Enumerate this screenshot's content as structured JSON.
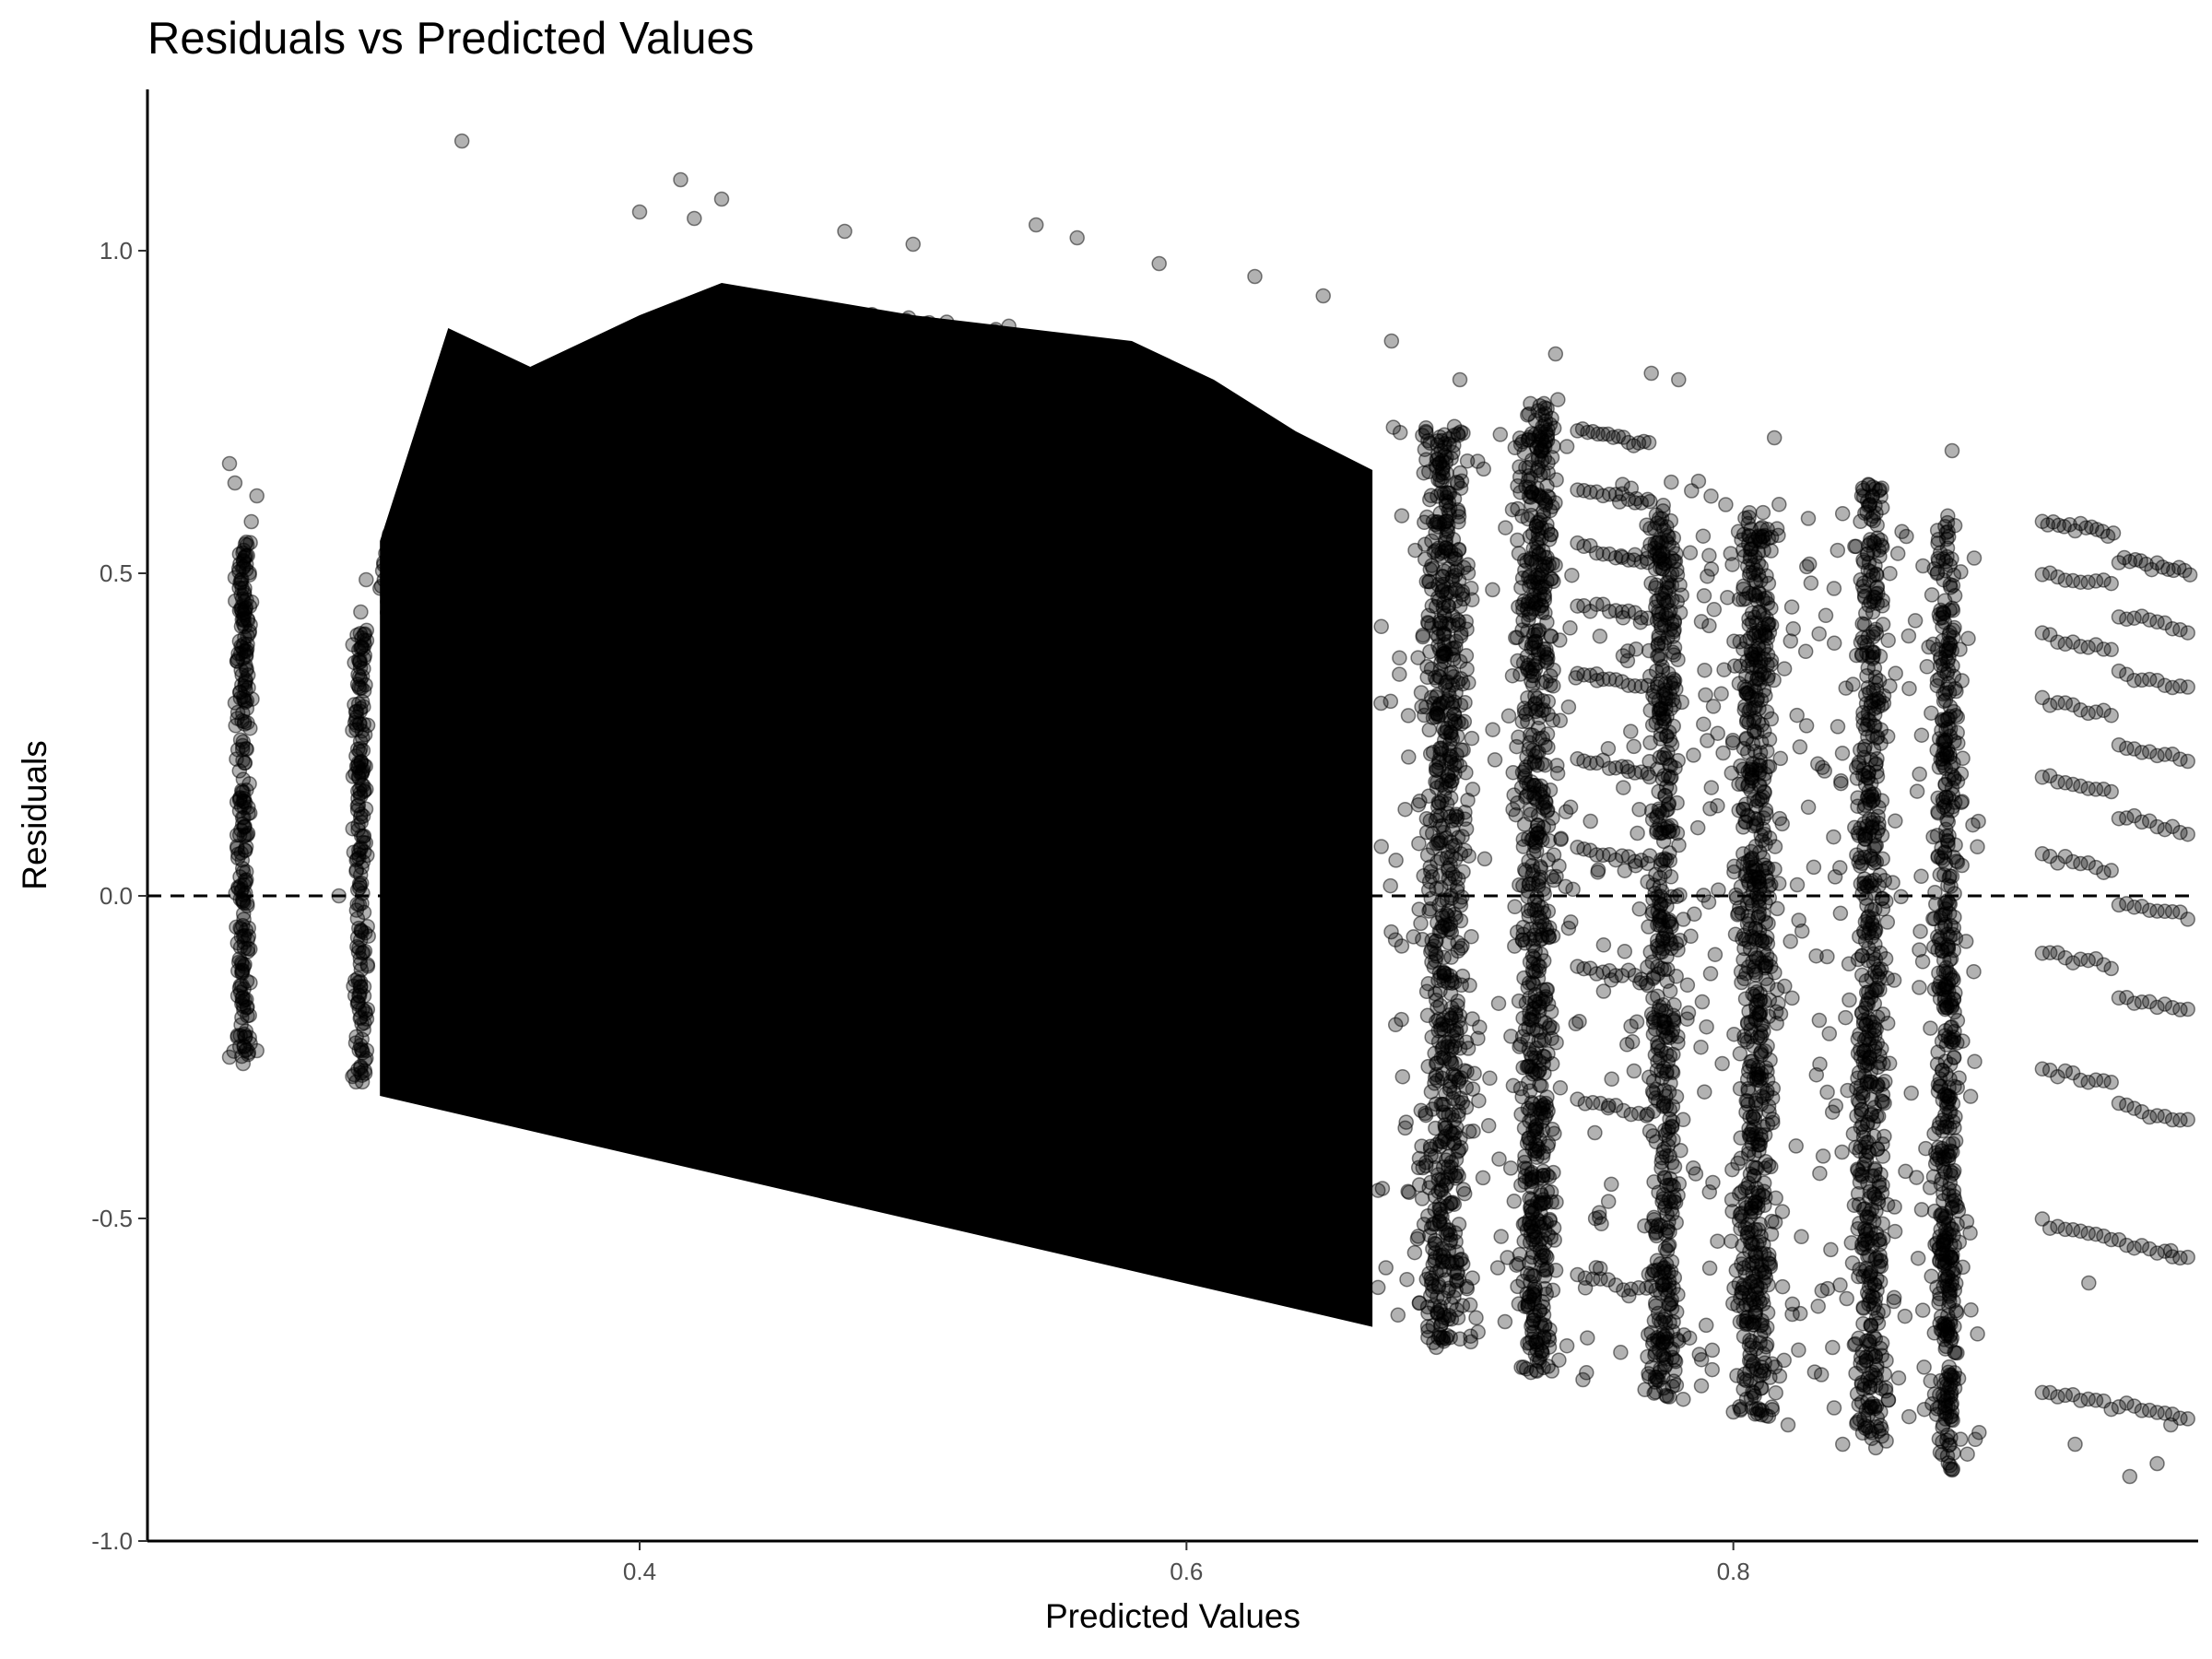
{
  "chart_data": {
    "type": "scatter",
    "title": "Residuals vs Predicted Values",
    "xlabel": "Predicted Values",
    "ylabel": "Residuals",
    "xlim": [
      0.22,
      0.97
    ],
    "ylim": [
      -1.0,
      1.25
    ],
    "xticks": [
      0.4,
      0.6,
      0.8
    ],
    "xtick_labels": [
      "0.4",
      "0.6",
      "0.8"
    ],
    "yticks": [
      -1.0,
      -0.5,
      0.0,
      0.5,
      1.0
    ],
    "ytick_labels": [
      "-1.0",
      "-0.5",
      "0.0",
      "0.5",
      "1.0"
    ],
    "reference_line": {
      "y": 0.0,
      "style": "dashed"
    },
    "grid": false,
    "legend": "none",
    "point_color": "#000000",
    "point_alpha": 0.3,
    "series": [
      {
        "points": [
          [
            0.335,
            1.17
          ],
          [
            0.415,
            1.11
          ],
          [
            0.43,
            1.08
          ],
          [
            0.4,
            1.06
          ],
          [
            0.42,
            1.05
          ],
          [
            0.475,
            1.03
          ],
          [
            0.545,
            1.04
          ],
          [
            0.56,
            1.02
          ],
          [
            0.5,
            1.01
          ],
          [
            0.59,
            0.98
          ],
          [
            0.625,
            0.96
          ],
          [
            0.65,
            0.93
          ],
          [
            0.675,
            0.86
          ],
          [
            0.7,
            0.8
          ],
          [
            0.735,
            0.84
          ],
          [
            0.77,
            0.81
          ],
          [
            0.78,
            0.8
          ],
          [
            0.815,
            0.71
          ],
          [
            0.88,
            0.69
          ],
          [
            0.25,
            0.67
          ],
          [
            0.252,
            0.64
          ],
          [
            0.26,
            0.62
          ],
          [
            0.258,
            0.58
          ],
          [
            0.3,
            0.49
          ],
          [
            0.298,
            0.44
          ],
          [
            0.29,
            0.0
          ],
          [
            0.295,
            -0.28
          ],
          [
            0.25,
            -0.25
          ],
          [
            0.255,
            -0.26
          ],
          [
            0.26,
            -0.24
          ],
          [
            0.745,
            -0.75
          ],
          [
            0.8,
            -0.8
          ],
          [
            0.82,
            -0.82
          ],
          [
            0.84,
            -0.85
          ],
          [
            0.88,
            -0.89
          ],
          [
            0.925,
            -0.85
          ],
          [
            0.945,
            -0.9
          ],
          [
            0.955,
            -0.88
          ],
          [
            0.96,
            -0.82
          ],
          [
            0.93,
            -0.6
          ],
          [
            0.96,
            -0.55
          ]
        ]
      }
    ]
  }
}
